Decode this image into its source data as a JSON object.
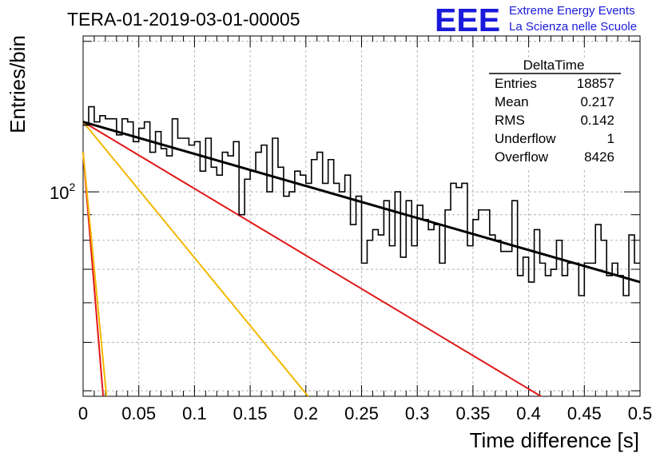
{
  "header": {
    "title": "TERA-01-2019-03-01-00005",
    "logo_text": "EEE",
    "logo_line1": "Extreme Energy Events",
    "logo_line2": "La Scienza nelle Scuole",
    "logo_color": "#1a1adc"
  },
  "stats_box": {
    "name": "DeltaTime",
    "rows": [
      {
        "label": "Entries",
        "value": "18857"
      },
      {
        "label": "Mean",
        "value": "0.217"
      },
      {
        "label": "RMS",
        "value": "0.142"
      },
      {
        "label": "Underflow",
        "value": "1"
      },
      {
        "label": "Overflow",
        "value": "8426"
      }
    ]
  },
  "chart_data": {
    "type": "line",
    "title": "TERA-01-2019-03-01-00005",
    "xlabel": "Time difference [s]",
    "ylabel": "Entries/bin",
    "xlim": [
      0,
      0.5
    ],
    "ylim": [
      39,
      205
    ],
    "y_scale": "log",
    "grid": true,
    "x_ticks": [
      "0",
      "0.05",
      "0.1",
      "0.15",
      "0.2",
      "0.25",
      "0.3",
      "0.35",
      "0.4",
      "0.45",
      "0.5"
    ],
    "y_tick_labels": [
      {
        "value": 100,
        "base": "10",
        "exp": "2"
      }
    ],
    "histogram": {
      "bin_width": 0.005,
      "values": [
        136,
        148,
        138,
        142,
        140,
        140,
        130,
        140,
        138,
        126,
        134,
        138,
        120,
        132,
        122,
        118,
        140,
        128,
        128,
        124,
        126,
        110,
        128,
        112,
        108,
        120,
        118,
        126,
        90,
        106,
        110,
        120,
        124,
        100,
        128,
        112,
        98,
        100,
        110,
        108,
        104,
        116,
        120,
        104,
        116,
        104,
        100,
        108,
        86,
        98,
        72,
        80,
        84,
        82,
        96,
        78,
        100,
        74,
        96,
        78,
        94,
        88,
        84,
        86,
        72,
        92,
        104,
        102,
        104,
        78,
        88,
        92,
        92,
        82,
        80,
        76,
        76,
        96,
        68,
        74,
        66,
        84,
        72,
        68,
        70,
        80,
        68,
        72,
        72,
        62,
        72,
        72,
        86,
        80,
        68,
        72,
        68,
        62,
        82,
        72
      ]
    },
    "series": [
      {
        "name": "fit",
        "color": "#000000",
        "x": [
          0,
          0.5
        ],
        "y": [
          138,
          66
        ]
      },
      {
        "color": "#e01818",
        "x": [
          0,
          0.411
        ],
        "y": [
          138,
          39
        ]
      },
      {
        "color": "#f2b800",
        "x": [
          0,
          0.202
        ],
        "y": [
          138,
          39
        ]
      },
      {
        "color": "#e01818",
        "x": [
          0,
          0.018
        ],
        "y": [
          120,
          39
        ]
      },
      {
        "color": "#f2b800",
        "x": [
          0,
          0.021
        ],
        "y": [
          120,
          39
        ]
      }
    ]
  }
}
